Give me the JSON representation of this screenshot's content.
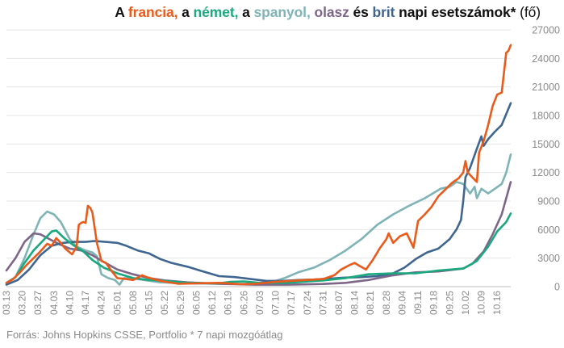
{
  "title": {
    "parts": [
      {
        "text": "A ",
        "color": "#111111",
        "weight": "bold"
      },
      {
        "text": "francia,",
        "color": "#ea5a1a",
        "weight": "bold"
      },
      {
        "text": " a ",
        "color": "#111111",
        "weight": "bold"
      },
      {
        "text": "német,",
        "color": "#1aa97e",
        "weight": "bold"
      },
      {
        "text": " a ",
        "color": "#111111",
        "weight": "bold"
      },
      {
        "text": "spanyol,",
        "color": "#7fb4b6",
        "weight": "bold"
      },
      {
        "text": " olasz",
        "color": "#7d6688",
        "weight": "bold"
      },
      {
        "text": " és ",
        "color": "#111111",
        "weight": "bold"
      },
      {
        "text": "brit",
        "color": "#3f6591",
        "weight": "bold"
      },
      {
        "text": " napi esetszámok* ",
        "color": "#111111",
        "weight": "bold"
      },
      {
        "text": "(fő)",
        "color": "#111111",
        "weight": "normal"
      }
    ]
  },
  "source_note": "Forrás: Johns Hopkins CSSE, Portfolio  * 7 napi mozgóátlag",
  "chart_data": {
    "type": "line",
    "title": "A francia, a német, a spanyol, olasz és brit napi esetszámok* (fő)",
    "xlabel": "",
    "ylabel": "",
    "y_axis_position": "right",
    "ylim": [
      0,
      27000
    ],
    "yticks": [
      0,
      3000,
      6000,
      9000,
      12000,
      15000,
      18000,
      21000,
      24000,
      27000
    ],
    "ytick_labels": [
      "0",
      "3000",
      "6000",
      "9000",
      "12000",
      "15000",
      "18000",
      "21000",
      "24000",
      "27000"
    ],
    "x_start": "2020-03-13",
    "x_end": "2020-10-22",
    "x_tick_dates": [
      "2020-03-13",
      "2020-03-20",
      "2020-03-27",
      "2020-04-03",
      "2020-04-10",
      "2020-04-17",
      "2020-04-24",
      "2020-05-01",
      "2020-05-08",
      "2020-05-15",
      "2020-05-22",
      "2020-05-29",
      "2020-06-05",
      "2020-06-12",
      "2020-06-19",
      "2020-06-26",
      "2020-07-03",
      "2020-07-10",
      "2020-07-17",
      "2020-07-24",
      "2020-07-31",
      "2020-08-07",
      "2020-08-14",
      "2020-08-21",
      "2020-08-28",
      "2020-09-04",
      "2020-09-11",
      "2020-09-18",
      "2020-09-25",
      "2020-10-02",
      "2020-10-09",
      "2020-10-16"
    ],
    "x_tick_labels": [
      "03.13",
      "03.20",
      "03.27",
      "04.03",
      "04.10",
      "04.17",
      "04.24",
      "05.01",
      "05.08",
      "05.15",
      "05.22",
      "05.29",
      "06.05",
      "06.12",
      "06.19",
      "06.26",
      "07.03",
      "07.10",
      "07.17",
      "07.24",
      "07.31",
      "08.07",
      "08.14",
      "08.21",
      "08.28",
      "09.04",
      "09.11",
      "09.18",
      "09.25",
      "10.02",
      "10.09",
      "10.16"
    ],
    "grid": "horizontal",
    "legend": "none (series named by colored words in title)",
    "series": [
      {
        "name": "spanyol",
        "color": "#7fb4b6",
        "points": [
          [
            "2020-03-13",
            300
          ],
          [
            "2020-03-17",
            1000
          ],
          [
            "2020-03-21",
            3000
          ],
          [
            "2020-03-25",
            5500
          ],
          [
            "2020-03-28",
            7200
          ],
          [
            "2020-03-31",
            7900
          ],
          [
            "2020-04-03",
            7600
          ],
          [
            "2020-04-06",
            6800
          ],
          [
            "2020-04-10",
            5000
          ],
          [
            "2020-04-13",
            4200
          ],
          [
            "2020-04-17",
            3800
          ],
          [
            "2020-04-20",
            3600
          ],
          [
            "2020-04-22",
            3200
          ],
          [
            "2020-04-24",
            1300
          ],
          [
            "2020-04-27",
            900
          ],
          [
            "2020-04-30",
            700
          ],
          [
            "2020-05-02",
            200
          ],
          [
            "2020-05-04",
            900
          ],
          [
            "2020-05-10",
            800
          ],
          [
            "2020-05-20",
            450
          ],
          [
            "2020-06-01",
            350
          ],
          [
            "2020-06-15",
            300
          ],
          [
            "2020-06-26",
            300
          ],
          [
            "2020-07-03",
            400
          ],
          [
            "2020-07-10",
            600
          ],
          [
            "2020-07-14",
            900
          ],
          [
            "2020-07-20",
            1500
          ],
          [
            "2020-07-27",
            2000
          ],
          [
            "2020-08-03",
            2800
          ],
          [
            "2020-08-10",
            3800
          ],
          [
            "2020-08-17",
            5000
          ],
          [
            "2020-08-24",
            6500
          ],
          [
            "2020-08-31",
            7600
          ],
          [
            "2020-09-07",
            8500
          ],
          [
            "2020-09-14",
            9300
          ],
          [
            "2020-09-21",
            10300
          ],
          [
            "2020-09-25",
            10500
          ],
          [
            "2020-09-28",
            11000
          ],
          [
            "2020-10-01",
            10800
          ],
          [
            "2020-10-04",
            9800
          ],
          [
            "2020-10-06",
            10500
          ],
          [
            "2020-10-07",
            9300
          ],
          [
            "2020-10-09",
            10300
          ],
          [
            "2020-10-12",
            9800
          ],
          [
            "2020-10-15",
            10300
          ],
          [
            "2020-10-18",
            10800
          ],
          [
            "2020-10-20",
            12000
          ],
          [
            "2020-10-22",
            13900
          ]
        ]
      },
      {
        "name": "olasz",
        "color": "#7d6688",
        "points": [
          [
            "2020-03-13",
            1700
          ],
          [
            "2020-03-17",
            3000
          ],
          [
            "2020-03-21",
            4700
          ],
          [
            "2020-03-25",
            5600
          ],
          [
            "2020-03-28",
            5500
          ],
          [
            "2020-04-01",
            5000
          ],
          [
            "2020-04-05",
            4500
          ],
          [
            "2020-04-10",
            4000
          ],
          [
            "2020-04-15",
            3800
          ],
          [
            "2020-04-20",
            3300
          ],
          [
            "2020-04-25",
            2600
          ],
          [
            "2020-05-01",
            1800
          ],
          [
            "2020-05-08",
            1300
          ],
          [
            "2020-05-15",
            900
          ],
          [
            "2020-05-22",
            650
          ],
          [
            "2020-06-01",
            450
          ],
          [
            "2020-06-15",
            300
          ],
          [
            "2020-07-01",
            200
          ],
          [
            "2020-07-15",
            200
          ],
          [
            "2020-07-31",
            280
          ],
          [
            "2020-08-10",
            400
          ],
          [
            "2020-08-20",
            700
          ],
          [
            "2020-08-31",
            1200
          ],
          [
            "2020-09-10",
            1500
          ],
          [
            "2020-09-20",
            1600
          ],
          [
            "2020-10-01",
            1900
          ],
          [
            "2020-10-05",
            2400
          ],
          [
            "2020-10-10",
            3700
          ],
          [
            "2020-10-14",
            5500
          ],
          [
            "2020-10-18",
            7600
          ],
          [
            "2020-10-22",
            11000
          ]
        ]
      },
      {
        "name": "brit",
        "color": "#3f6591",
        "points": [
          [
            "2020-03-13",
            200
          ],
          [
            "2020-03-18",
            700
          ],
          [
            "2020-03-23",
            1800
          ],
          [
            "2020-03-28",
            3300
          ],
          [
            "2020-04-02",
            4300
          ],
          [
            "2020-04-07",
            4600
          ],
          [
            "2020-04-12",
            4700
          ],
          [
            "2020-04-17",
            4700
          ],
          [
            "2020-04-21",
            4800
          ],
          [
            "2020-04-26",
            4700
          ],
          [
            "2020-05-01",
            4600
          ],
          [
            "2020-05-05",
            4300
          ],
          [
            "2020-05-10",
            3800
          ],
          [
            "2020-05-15",
            3500
          ],
          [
            "2020-05-20",
            2900
          ],
          [
            "2020-05-25",
            2500
          ],
          [
            "2020-06-01",
            2100
          ],
          [
            "2020-06-08",
            1600
          ],
          [
            "2020-06-15",
            1100
          ],
          [
            "2020-06-22",
            1000
          ],
          [
            "2020-06-29",
            800
          ],
          [
            "2020-07-06",
            600
          ],
          [
            "2020-07-13",
            600
          ],
          [
            "2020-07-20",
            700
          ],
          [
            "2020-07-27",
            750
          ],
          [
            "2020-08-03",
            850
          ],
          [
            "2020-08-10",
            950
          ],
          [
            "2020-08-17",
            1000
          ],
          [
            "2020-08-24",
            1100
          ],
          [
            "2020-08-31",
            1400
          ],
          [
            "2020-09-05",
            2000
          ],
          [
            "2020-09-10",
            2900
          ],
          [
            "2020-09-15",
            3600
          ],
          [
            "2020-09-20",
            4000
          ],
          [
            "2020-09-25",
            5000
          ],
          [
            "2020-09-28",
            6000
          ],
          [
            "2020-09-30",
            7000
          ],
          [
            "2020-10-01",
            9000
          ],
          [
            "2020-10-02",
            11500
          ],
          [
            "2020-10-04",
            12500
          ],
          [
            "2020-10-07",
            14500
          ],
          [
            "2020-10-09",
            15800
          ],
          [
            "2020-10-10",
            14800
          ],
          [
            "2020-10-12",
            15500
          ],
          [
            "2020-10-15",
            16300
          ],
          [
            "2020-10-18",
            17000
          ],
          [
            "2020-10-22",
            19300
          ]
        ]
      },
      {
        "name": "német",
        "color": "#1aa97e",
        "points": [
          [
            "2020-03-13",
            400
          ],
          [
            "2020-03-17",
            1000
          ],
          [
            "2020-03-21",
            2500
          ],
          [
            "2020-03-25",
            3800
          ],
          [
            "2020-03-29",
            4800
          ],
          [
            "2020-04-02",
            5800
          ],
          [
            "2020-04-04",
            5900
          ],
          [
            "2020-04-08",
            5000
          ],
          [
            "2020-04-12",
            4300
          ],
          [
            "2020-04-16",
            3700
          ],
          [
            "2020-04-20",
            2800
          ],
          [
            "2020-04-25",
            2000
          ],
          [
            "2020-05-01",
            1400
          ],
          [
            "2020-05-08",
            900
          ],
          [
            "2020-05-15",
            700
          ],
          [
            "2020-05-22",
            600
          ],
          [
            "2020-06-01",
            400
          ],
          [
            "2020-06-15",
            350
          ],
          [
            "2020-06-20",
            500
          ],
          [
            "2020-06-26",
            550
          ],
          [
            "2020-07-03",
            400
          ],
          [
            "2020-07-15",
            400
          ],
          [
            "2020-07-31",
            650
          ],
          [
            "2020-08-10",
            900
          ],
          [
            "2020-08-20",
            1300
          ],
          [
            "2020-08-31",
            1400
          ],
          [
            "2020-09-10",
            1400
          ],
          [
            "2020-09-20",
            1700
          ],
          [
            "2020-10-01",
            1900
          ],
          [
            "2020-10-07",
            2700
          ],
          [
            "2020-10-12",
            4200
          ],
          [
            "2020-10-16",
            5800
          ],
          [
            "2020-10-20",
            6800
          ],
          [
            "2020-10-22",
            7700
          ]
        ]
      },
      {
        "name": "francia",
        "color": "#ea5a1a",
        "points": [
          [
            "2020-03-13",
            400
          ],
          [
            "2020-03-16",
            800
          ],
          [
            "2020-03-19",
            1500
          ],
          [
            "2020-03-22",
            2300
          ],
          [
            "2020-03-25",
            3000
          ],
          [
            "2020-03-28",
            3700
          ],
          [
            "2020-03-31",
            4500
          ],
          [
            "2020-04-02",
            4300
          ],
          [
            "2020-04-04",
            5100
          ],
          [
            "2020-04-06",
            4600
          ],
          [
            "2020-04-08",
            4000
          ],
          [
            "2020-04-11",
            3400
          ],
          [
            "2020-04-13",
            4200
          ],
          [
            "2020-04-14",
            6500
          ],
          [
            "2020-04-15",
            6700
          ],
          [
            "2020-04-16",
            6800
          ],
          [
            "2020-04-17",
            6700
          ],
          [
            "2020-04-18",
            8500
          ],
          [
            "2020-04-19",
            8300
          ],
          [
            "2020-04-20",
            7800
          ],
          [
            "2020-04-22",
            4600
          ],
          [
            "2020-04-24",
            2700
          ],
          [
            "2020-04-26",
            2500
          ],
          [
            "2020-04-28",
            1800
          ],
          [
            "2020-05-01",
            900
          ],
          [
            "2020-05-05",
            800
          ],
          [
            "2020-05-08",
            700
          ],
          [
            "2020-05-12",
            1200
          ],
          [
            "2020-05-14",
            1000
          ],
          [
            "2020-05-20",
            600
          ],
          [
            "2020-05-28",
            300
          ],
          [
            "2020-06-05",
            350
          ],
          [
            "2020-06-15",
            400
          ],
          [
            "2020-06-25",
            250
          ],
          [
            "2020-07-01",
            300
          ],
          [
            "2020-07-10",
            500
          ],
          [
            "2020-07-20",
            650
          ],
          [
            "2020-07-31",
            800
          ],
          [
            "2020-08-05",
            1200
          ],
          [
            "2020-08-08",
            1800
          ],
          [
            "2020-08-12",
            2300
          ],
          [
            "2020-08-14",
            2500
          ],
          [
            "2020-08-16",
            2200
          ],
          [
            "2020-08-19",
            1800
          ],
          [
            "2020-08-22",
            2800
          ],
          [
            "2020-08-25",
            4000
          ],
          [
            "2020-08-28",
            5000
          ],
          [
            "2020-08-29",
            5600
          ],
          [
            "2020-08-31",
            4600
          ],
          [
            "2020-09-03",
            5300
          ],
          [
            "2020-09-06",
            5600
          ],
          [
            "2020-09-09",
            4100
          ],
          [
            "2020-09-11",
            6900
          ],
          [
            "2020-09-14",
            7600
          ],
          [
            "2020-09-17",
            8400
          ],
          [
            "2020-09-20",
            9500
          ],
          [
            "2020-09-23",
            10200
          ],
          [
            "2020-09-26",
            10900
          ],
          [
            "2020-09-29",
            11400
          ],
          [
            "2020-10-01",
            12000
          ],
          [
            "2020-10-02",
            13200
          ],
          [
            "2020-10-03",
            12000
          ],
          [
            "2020-10-05",
            11500
          ],
          [
            "2020-10-07",
            11000
          ],
          [
            "2020-10-08",
            14100
          ],
          [
            "2020-10-10",
            15300
          ],
          [
            "2020-10-12",
            17000
          ],
          [
            "2020-10-14",
            19000
          ],
          [
            "2020-10-16",
            20200
          ],
          [
            "2020-10-18",
            20400
          ],
          [
            "2020-10-20",
            24600
          ],
          [
            "2020-10-21",
            24800
          ],
          [
            "2020-10-22",
            25400
          ]
        ]
      }
    ]
  }
}
